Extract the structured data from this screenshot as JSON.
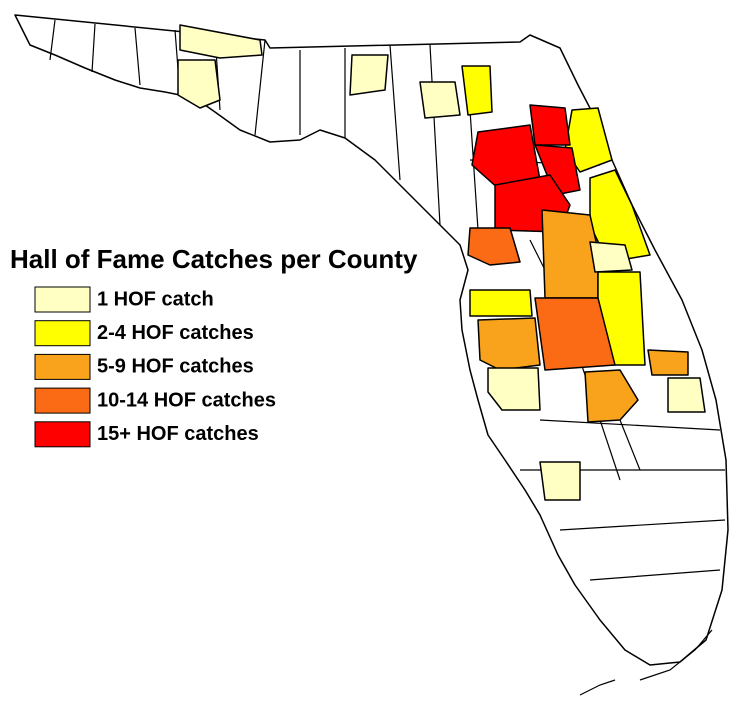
{
  "title": "Hall of Fame Catches per County",
  "legend": [
    {
      "label": "1 HOF catch",
      "color": "#ffffc4"
    },
    {
      "label": "2-4 HOF catches",
      "color": "#ffff00"
    },
    {
      "label": "5-9 HOF catches",
      "color": "#f9a21b"
    },
    {
      "label": "10-14 HOF catches",
      "color": "#fb6a14"
    },
    {
      "label": "15+ HOF catches",
      "color": "#ff0000"
    }
  ]
}
